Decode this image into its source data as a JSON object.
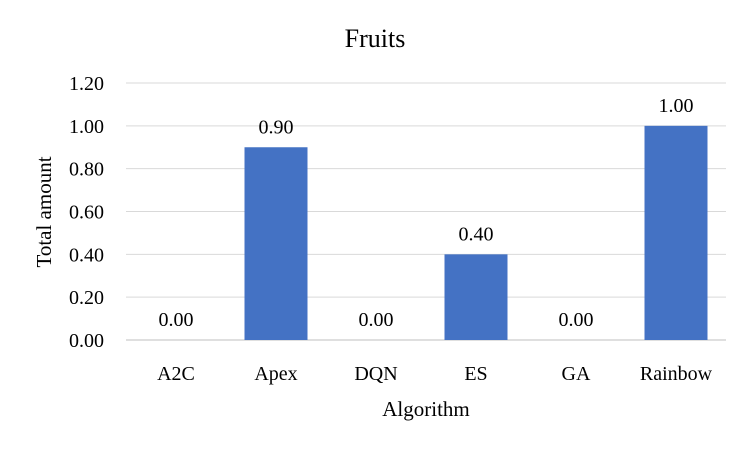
{
  "chart_data": {
    "type": "bar",
    "title": "Fruits",
    "xlabel": "Algorithm",
    "ylabel": "Total amount",
    "categories": [
      "A2C",
      "Apex",
      "DQN",
      "ES",
      "GA",
      "Rainbow"
    ],
    "values": [
      0.0,
      0.9,
      0.0,
      0.4,
      0.0,
      1.0
    ],
    "data_labels": [
      "0.00",
      "0.90",
      "0.00",
      "0.40",
      "0.00",
      "1.00"
    ],
    "ylim": [
      0,
      1.2
    ],
    "yticks": [
      0,
      0.2,
      0.4,
      0.6,
      0.8,
      1.0,
      1.2
    ],
    "ytick_labels": [
      "0.00",
      "0.20",
      "0.40",
      "0.60",
      "0.80",
      "1.00",
      "1.20"
    ],
    "grid": true,
    "legend": "none",
    "colors": {
      "bar": "#4472C4",
      "grid": "#d9d9d9",
      "text": "#000000"
    }
  }
}
